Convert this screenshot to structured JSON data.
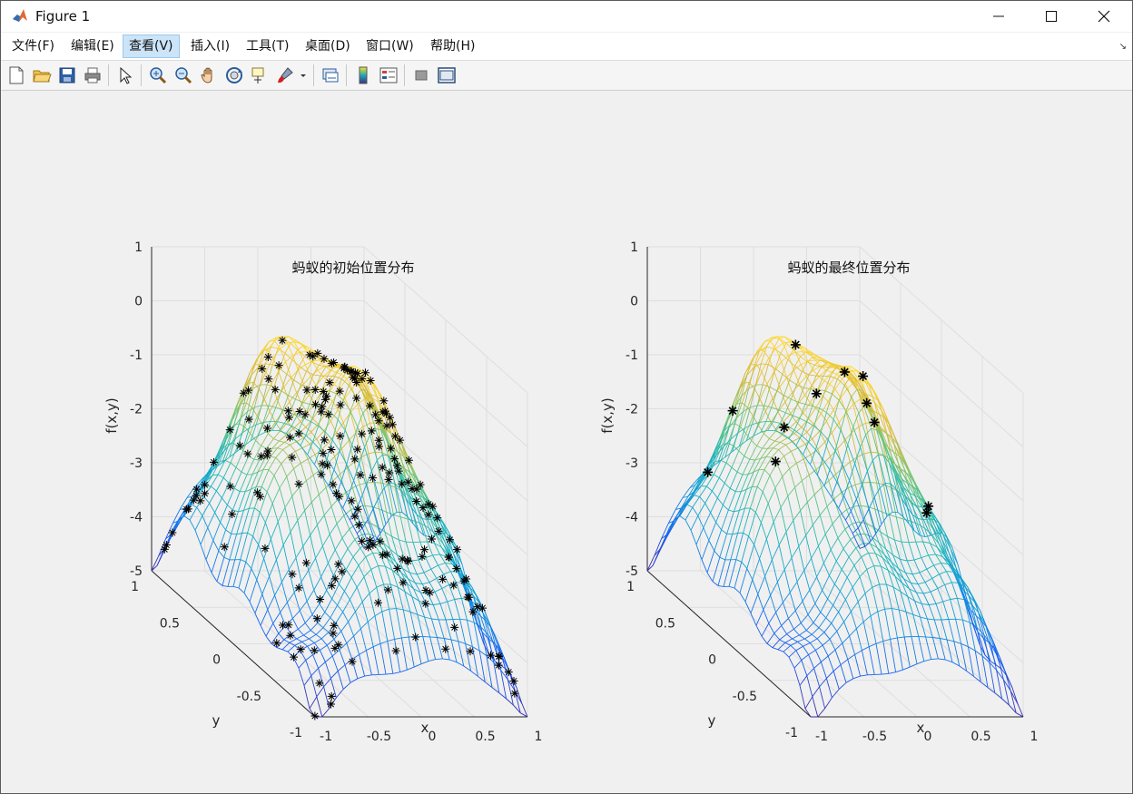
{
  "window": {
    "title": "Figure 1"
  },
  "menu": {
    "items": [
      "文件(F)",
      "编辑(E)",
      "查看(V)",
      "插入(I)",
      "工具(T)",
      "桌面(D)",
      "窗口(W)",
      "帮助(H)"
    ],
    "active": "查看(V)"
  },
  "toolbar": {
    "icons": [
      "new-figure-icon",
      "open-file-icon",
      "save-icon",
      "print-icon",
      "select-arrow-icon",
      "zoom-in-icon",
      "zoom-out-icon",
      "pan-hand-icon",
      "rotate-3d-icon",
      "data-cursor-icon",
      "brush-icon",
      "brush-dropdown-icon",
      "link-plot-icon",
      "colorbar-icon",
      "legend-icon",
      "hide-plot-tools-icon",
      "show-plot-tools-icon"
    ]
  },
  "colors": {
    "surface_low": "#3b2f8a",
    "surface_mid": "#21a6b5",
    "surface_high": "#f9e227",
    "marker": "#000000",
    "grid": "#dedede"
  },
  "chart_data": [
    {
      "type": "surface",
      "title": "蚂蚁的初始位置分布",
      "xlabel": "x",
      "ylabel": "y",
      "zlabel": "f(x,y)",
      "xlim": [
        -1,
        1
      ],
      "ylim": [
        -1,
        1
      ],
      "zlim": [
        -5,
        1
      ],
      "xticks": [
        "-1",
        "-0.5",
        "0",
        "0.5",
        "1"
      ],
      "yticks": [
        "-1",
        "-0.5",
        "0",
        "0.5",
        "1"
      ],
      "zticks": [
        "1",
        "0",
        "-1",
        "-2",
        "-3",
        "-4",
        "-5"
      ],
      "colormap": "parula",
      "markers": "ant positions (*)",
      "marker_count": 200
    },
    {
      "type": "surface",
      "title": "蚂蚁的最终位置分布",
      "xlabel": "x",
      "ylabel": "y",
      "zlabel": "f(x,y)",
      "xlim": [
        -1,
        1
      ],
      "ylim": [
        -1,
        1
      ],
      "zlim": [
        -5,
        1
      ],
      "xticks": [
        "-1",
        "-0.5",
        "0",
        "0.5",
        "1"
      ],
      "yticks": [
        "-1",
        "-0.5",
        "0",
        "0.5",
        "1"
      ],
      "zticks": [
        "1",
        "0",
        "-1",
        "-2",
        "-3",
        "-4",
        "-5"
      ],
      "colormap": "parula",
      "markers": "ant positions (*)",
      "marker_count": 12
    }
  ]
}
